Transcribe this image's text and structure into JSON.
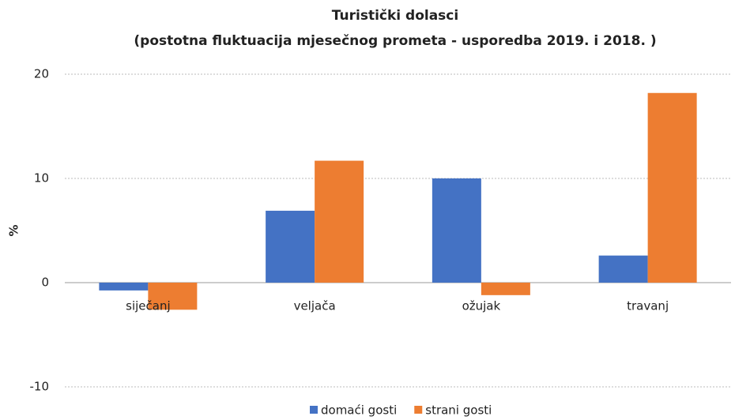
{
  "chart_data": {
    "type": "bar",
    "title": "Turistički dolasci",
    "subtitle": "(postotna fluktuacija mjesečnog prometa - usporedba 2019. i 2018. )",
    "y_label": "%",
    "categories": [
      "siječanj",
      "veljača",
      "ožujak",
      "travanj"
    ],
    "series": [
      {
        "name": "domaći gosti",
        "color": "#4472c4",
        "values": [
          -0.75,
          6.9,
          10.0,
          2.6
        ]
      },
      {
        "name": "strani gosti",
        "color": "#ed7d31",
        "values": [
          -2.6,
          11.7,
          -1.2,
          18.2
        ]
      }
    ],
    "ylim": [
      -10,
      20
    ],
    "yticks": [
      -10,
      0,
      10,
      20
    ],
    "grid": true,
    "legend": "bottom"
  }
}
